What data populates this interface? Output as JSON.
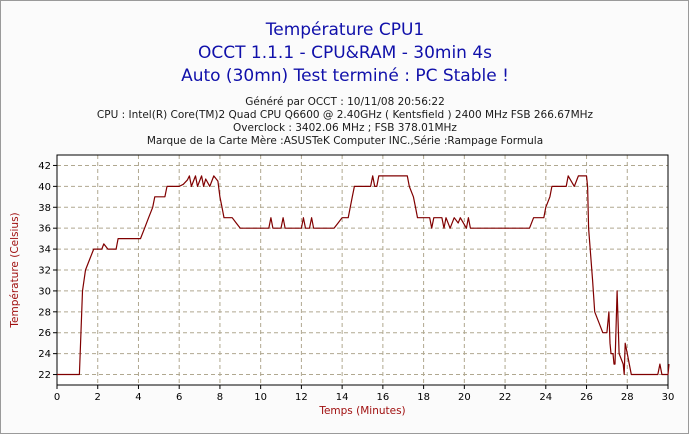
{
  "titles": {
    "line1": "Température CPU1",
    "line2": "OCCT 1.1.1 - CPU&RAM - 30min 4s",
    "line3": "Auto (30mn) Test terminé : PC Stable !"
  },
  "info": {
    "generated": "Généré par OCCT : 10/11/08 20:56:22",
    "cpu": "CPU : Intel(R) Core(TM)2 Quad CPU Q6600 @ 2.40GHz ( Kentsfield ) 2400 MHz FSB 266.67MHz",
    "overclock": "Overclock : 3402.06 MHz ; FSB 378.01MHz",
    "motherboard": "Marque de la Carte Mère :ASUSTeK Computer INC.,Série :Rampage Formula"
  },
  "colors": {
    "title": "#1010aa",
    "axis_label": "#a01010",
    "series": "#800000",
    "grid": "#b0a890",
    "plot_background": "#ffffff"
  },
  "chart_data": {
    "type": "line",
    "xlabel": "Temps (Minutes)",
    "ylabel": "Température (Celsius)",
    "xlim": [
      0,
      30
    ],
    "ylim": [
      21,
      43
    ],
    "xticks": [
      0,
      2,
      4,
      6,
      8,
      10,
      12,
      14,
      16,
      18,
      20,
      22,
      24,
      26,
      28,
      30
    ],
    "yticks": [
      22,
      24,
      26,
      28,
      30,
      32,
      34,
      36,
      38,
      40,
      42
    ],
    "grid": true,
    "grid_style": "dashed",
    "series": [
      {
        "points": [
          [
            0,
            22
          ],
          [
            1.1,
            22
          ],
          [
            1.25,
            30
          ],
          [
            1.4,
            32
          ],
          [
            1.6,
            33
          ],
          [
            1.8,
            34
          ],
          [
            2.2,
            34
          ],
          [
            2.3,
            34.5
          ],
          [
            2.5,
            34
          ],
          [
            2.9,
            34
          ],
          [
            3.0,
            35
          ],
          [
            3.4,
            35
          ],
          [
            3.6,
            35
          ],
          [
            4.0,
            35
          ],
          [
            4.1,
            35
          ],
          [
            4.3,
            36
          ],
          [
            4.5,
            37
          ],
          [
            4.7,
            38
          ],
          [
            4.8,
            39
          ],
          [
            5.3,
            39
          ],
          [
            5.4,
            40
          ],
          [
            6.0,
            40
          ],
          [
            6.2,
            40.2
          ],
          [
            6.4,
            40.6
          ],
          [
            6.5,
            41
          ],
          [
            6.6,
            40
          ],
          [
            6.8,
            41
          ],
          [
            6.9,
            40
          ],
          [
            7.1,
            41
          ],
          [
            7.2,
            40
          ],
          [
            7.3,
            40.7
          ],
          [
            7.5,
            40
          ],
          [
            7.7,
            41
          ],
          [
            7.9,
            40.5
          ],
          [
            8.0,
            39
          ],
          [
            8.1,
            38
          ],
          [
            8.2,
            37
          ],
          [
            8.6,
            37
          ],
          [
            8.8,
            36.5
          ],
          [
            9.0,
            36
          ],
          [
            10.4,
            36
          ],
          [
            10.5,
            37
          ],
          [
            10.6,
            36
          ],
          [
            11.0,
            36
          ],
          [
            11.1,
            37
          ],
          [
            11.2,
            36
          ],
          [
            12.0,
            36
          ],
          [
            12.1,
            37
          ],
          [
            12.2,
            36
          ],
          [
            12.4,
            36
          ],
          [
            12.5,
            37
          ],
          [
            12.6,
            36
          ],
          [
            13.4,
            36
          ],
          [
            13.6,
            36
          ],
          [
            13.8,
            36.5
          ],
          [
            14.0,
            37
          ],
          [
            14.3,
            37
          ],
          [
            14.5,
            39
          ],
          [
            14.6,
            40
          ],
          [
            15.4,
            40
          ],
          [
            15.5,
            41
          ],
          [
            15.6,
            40
          ],
          [
            15.7,
            40
          ],
          [
            15.8,
            41
          ],
          [
            17.2,
            41
          ],
          [
            17.3,
            40
          ],
          [
            17.5,
            39
          ],
          [
            17.6,
            38
          ],
          [
            17.7,
            37
          ],
          [
            18.3,
            37
          ],
          [
            18.4,
            36
          ],
          [
            18.5,
            37
          ],
          [
            18.9,
            37
          ],
          [
            19.0,
            36
          ],
          [
            19.1,
            37
          ],
          [
            19.3,
            36
          ],
          [
            19.5,
            37
          ],
          [
            19.7,
            36.5
          ],
          [
            19.8,
            37
          ],
          [
            20.1,
            36
          ],
          [
            20.2,
            37
          ],
          [
            20.3,
            36
          ],
          [
            20.5,
            36
          ],
          [
            23.0,
            36
          ],
          [
            23.2,
            36
          ],
          [
            23.4,
            37
          ],
          [
            23.9,
            37
          ],
          [
            24.0,
            38
          ],
          [
            24.2,
            39
          ],
          [
            24.3,
            40
          ],
          [
            25.0,
            40
          ],
          [
            25.1,
            41
          ],
          [
            25.4,
            40
          ],
          [
            25.6,
            41
          ],
          [
            25.9,
            41
          ],
          [
            26.0,
            41
          ],
          [
            26.05,
            40
          ],
          [
            26.1,
            36
          ],
          [
            26.3,
            31
          ],
          [
            26.4,
            28
          ],
          [
            26.6,
            27
          ],
          [
            26.8,
            26
          ],
          [
            27.0,
            26
          ],
          [
            27.1,
            28
          ],
          [
            27.15,
            25
          ],
          [
            27.2,
            24
          ],
          [
            27.3,
            24
          ],
          [
            27.35,
            23
          ],
          [
            27.4,
            23
          ],
          [
            27.5,
            30
          ],
          [
            27.55,
            27
          ],
          [
            27.6,
            24
          ],
          [
            27.8,
            23
          ],
          [
            27.85,
            22
          ],
          [
            27.9,
            25
          ],
          [
            28.0,
            24
          ],
          [
            28.1,
            23
          ],
          [
            28.2,
            22
          ],
          [
            29.5,
            22
          ],
          [
            29.6,
            23
          ],
          [
            29.7,
            22
          ],
          [
            30.0,
            22
          ],
          [
            30.05,
            23
          ]
        ]
      }
    ]
  }
}
